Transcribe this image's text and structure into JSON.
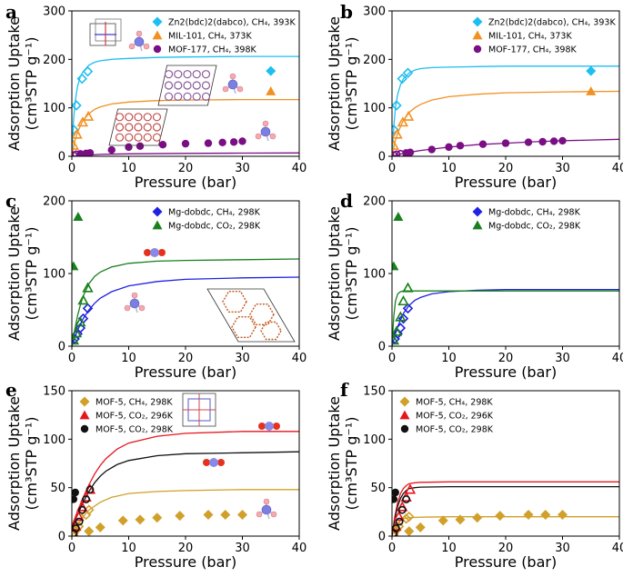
{
  "colors": {
    "cyan": "#1fbef0",
    "orange": "#f29122",
    "purple": "#7a0e84",
    "blue": "#1f22e0",
    "green": "#18801c",
    "gold": "#d0a02a",
    "red": "#e6161e",
    "black": "#111111"
  },
  "chart_data": [
    {
      "id": "a",
      "type": "scatter",
      "panel_label": "a",
      "xlabel": "Pressure (bar)",
      "ylabel_line1": "Adsorption Uptake",
      "ylabel_line2": "(cm³STP g⁻¹)",
      "xlim": [
        0,
        40
      ],
      "ylim": [
        0,
        300
      ],
      "xticks": [
        "0",
        "10",
        "20",
        "30",
        "40"
      ],
      "yticks": [
        "0",
        "100",
        "200",
        "300"
      ],
      "legend_position": "top-right",
      "series": [
        {
          "name": "Zn2(bdc)2(dabco), CH₄, 393K",
          "color": "#1fbef0",
          "marker": "diamond",
          "hollow_x": [
            0.3,
            0.8,
            1.8,
            2.8
          ],
          "hollow_y": [
            55,
            105,
            160,
            175
          ],
          "filled_x": [
            35
          ],
          "filled_y": [
            176
          ],
          "curve_x": [
            0,
            0.3,
            0.6,
            1,
            1.5,
            2,
            3,
            4,
            5,
            7,
            10,
            15,
            20,
            30,
            40
          ],
          "curve_y": [
            0,
            75,
            115,
            145,
            165,
            175,
            188,
            194,
            197,
            200,
            202,
            204,
            205,
            206,
            206
          ]
        },
        {
          "name": "MIL-101, CH₄, 373K",
          "color": "#f29122",
          "marker": "triangle",
          "hollow_x": [
            0.3,
            0.9,
            1.9,
            2.9
          ],
          "hollow_y": [
            22,
            45,
            70,
            82
          ],
          "filled_x": [
            35
          ],
          "filled_y": [
            134
          ],
          "curve_x": [
            0,
            0.5,
            1,
            2,
            3,
            4,
            5,
            7,
            10,
            15,
            20,
            30,
            40
          ],
          "curve_y": [
            0,
            30,
            50,
            75,
            88,
            97,
            102,
            108,
            112,
            115,
            116,
            117,
            117
          ]
        },
        {
          "name": "MOF-177, CH₄, 398K",
          "color": "#7a0e84",
          "marker": "circle",
          "hollow_x": [
            0.3,
            0.8
          ],
          "hollow_y": [
            2,
            4
          ],
          "filled_x": [
            1.5,
            2.5,
            3.2,
            7,
            10,
            12,
            16,
            20,
            24,
            26.5,
            28.5,
            30
          ],
          "filled_y": [
            5,
            6,
            7,
            13,
            19,
            21,
            24,
            26,
            27,
            28.5,
            29.5,
            31
          ],
          "curve_x": [
            0,
            5,
            10,
            20,
            30,
            40
          ],
          "curve_y": [
            0,
            4,
            5,
            6,
            6.5,
            7
          ]
        }
      ],
      "annotations": [
        "CH₄ molecule icons",
        "MOF framework structure images"
      ]
    },
    {
      "id": "b",
      "type": "scatter",
      "panel_label": "b",
      "xlabel": "Pressure (bar)",
      "ylabel_line1": "Adsorption Uptake",
      "ylabel_line2": "(cm³STP g⁻¹)",
      "xlim": [
        0,
        40
      ],
      "ylim": [
        0,
        300
      ],
      "xticks": [
        "0",
        "10",
        "20",
        "30",
        "40"
      ],
      "yticks": [
        "0",
        "100",
        "200",
        "300"
      ],
      "legend_position": "top-right",
      "series": [
        {
          "name": "Zn2(bdc)2(dabco), CH₄, 393K",
          "color": "#1fbef0",
          "marker": "diamond",
          "hollow_x": [
            0.3,
            0.8,
            1.8,
            2.8
          ],
          "hollow_y": [
            55,
            105,
            160,
            172
          ],
          "filled_x": [
            35
          ],
          "filled_y": [
            176
          ],
          "curve_x": [
            0,
            0.3,
            0.6,
            1,
            1.5,
            2,
            3,
            4,
            5,
            7,
            10,
            15,
            20,
            30,
            40
          ],
          "curve_y": [
            0,
            60,
            100,
            128,
            148,
            160,
            172,
            178,
            181,
            183,
            184,
            185,
            186,
            186,
            186
          ]
        },
        {
          "name": "MIL-101, CH₄, 373K",
          "color": "#f29122",
          "marker": "triangle",
          "hollow_x": [
            0.3,
            0.9,
            1.9,
            2.9
          ],
          "hollow_y": [
            22,
            45,
            70,
            82
          ],
          "filled_x": [
            35
          ],
          "filled_y": [
            134
          ],
          "curve_x": [
            0,
            0.5,
            1,
            2,
            3,
            4,
            5,
            7,
            10,
            15,
            20,
            30,
            40
          ],
          "curve_y": [
            0,
            28,
            48,
            74,
            90,
            100,
            107,
            116,
            123,
            128,
            131,
            133,
            134
          ]
        },
        {
          "name": "MOF-177, CH₄, 398K",
          "color": "#7a0e84",
          "marker": "circle",
          "hollow_x": [
            0.3,
            0.8,
            1.5
          ],
          "hollow_y": [
            2,
            4,
            5
          ],
          "filled_x": [
            2.5,
            3.2,
            7,
            10,
            12,
            16,
            20,
            24,
            26.5,
            28.5,
            30
          ],
          "filled_y": [
            7,
            8,
            14,
            19,
            22,
            25,
            27,
            29,
            30,
            31,
            32
          ],
          "curve_x": [
            0,
            2,
            5,
            10,
            15,
            20,
            25,
            30,
            35,
            40
          ],
          "curve_y": [
            0,
            6,
            12,
            19,
            24,
            27,
            30,
            32,
            33.5,
            35
          ]
        }
      ]
    },
    {
      "id": "c",
      "type": "scatter",
      "panel_label": "c",
      "xlabel": "Pressure (bar)",
      "ylabel_line1": "Adsorption Uptake",
      "ylabel_line2": "(cm³STP g⁻¹)",
      "xlim": [
        0,
        40
      ],
      "ylim": [
        0,
        200
      ],
      "xticks": [
        "0",
        "10",
        "20",
        "30",
        "40"
      ],
      "yticks": [
        "0",
        "100",
        "200"
      ],
      "legend_position": "top-right",
      "series": [
        {
          "name": "Mg-dobdc, CH₄, 298K",
          "color": "#1f22e0",
          "marker": "diamond",
          "hollow_x": [
            0.5,
            1.0,
            1.5,
            2.0,
            2.8
          ],
          "hollow_y": [
            10,
            17,
            25,
            38,
            52
          ],
          "filled_x": [],
          "filled_y": [],
          "curve_x": [
            0,
            1,
            2,
            3,
            4,
            5,
            7,
            10,
            15,
            20,
            30,
            40
          ],
          "curve_y": [
            0,
            22,
            38,
            50,
            59,
            66,
            75,
            83,
            89,
            92,
            94,
            95
          ]
        },
        {
          "name": "Mg-dobdc, CO₂, 298K",
          "color": "#18801c",
          "marker": "triangle",
          "hollow_x": [
            0.3,
            0.8,
            1.5,
            2.0,
            2.8
          ],
          "hollow_y": [
            8,
            18,
            33,
            63,
            80
          ],
          "filled_x": [
            0.3,
            1.1
          ],
          "filled_y": [
            110,
            178
          ],
          "curve_x": [
            0,
            0.5,
            1,
            1.5,
            2,
            3,
            4,
            5,
            7,
            10,
            15,
            20,
            30,
            40
          ],
          "curve_y": [
            0,
            22,
            42,
            57,
            69,
            86,
            96,
            102,
            109,
            114,
            117,
            118,
            119,
            120
          ]
        }
      ],
      "annotations": [
        "CO₂ molecule icon",
        "CH₄ molecule icon",
        "Mg-dobdc hexagonal framework image"
      ]
    },
    {
      "id": "d",
      "type": "scatter",
      "panel_label": "d",
      "xlabel": "Pressure (bar)",
      "ylabel_line1": "Adsorption Uptake",
      "ylabel_line2": "(cm³STP g⁻¹)",
      "xlim": [
        0,
        40
      ],
      "ylim": [
        0,
        200
      ],
      "xticks": [
        "0",
        "10",
        "20",
        "30",
        "40"
      ],
      "yticks": [
        "0",
        "100",
        "200"
      ],
      "legend_position": "top-right",
      "series": [
        {
          "name": "Mg-dobdc, CH₄, 298K",
          "color": "#1f22e0",
          "marker": "diamond",
          "hollow_x": [
            0.5,
            1.0,
            1.5,
            2.0,
            2.8
          ],
          "hollow_y": [
            10,
            17,
            25,
            38,
            52
          ],
          "filled_x": [],
          "filled_y": [],
          "curve_x": [
            0,
            0.5,
            1,
            2,
            3,
            4,
            5,
            7,
            10,
            15,
            20,
            30,
            40
          ],
          "curve_y": [
            0,
            14,
            27,
            45,
            56,
            63,
            67,
            72,
            75,
            77,
            78,
            78,
            78
          ]
        },
        {
          "name": "Mg-dobdc, CO₂, 298K",
          "color": "#18801c",
          "marker": "triangle",
          "hollow_x": [
            0.3,
            0.8,
            1.5,
            2.0,
            2.8
          ],
          "hollow_y": [
            8,
            20,
            40,
            62,
            80
          ],
          "filled_x": [
            0.3,
            1.1
          ],
          "filled_y": [
            110,
            178
          ],
          "curve_x": [
            0,
            0.3,
            0.6,
            1,
            1.5,
            2,
            3,
            5,
            10,
            20,
            30,
            40
          ],
          "curve_y": [
            0,
            40,
            62,
            72,
            75,
            76,
            76,
            76,
            76,
            76,
            76,
            76
          ]
        }
      ]
    },
    {
      "id": "e",
      "type": "scatter",
      "panel_label": "e",
      "xlabel": "Pressure (bar)",
      "ylabel_line1": "Adsorption Uptake",
      "ylabel_line2": "(cm³STP g⁻¹)",
      "xlim": [
        0,
        40
      ],
      "ylim": [
        0,
        150
      ],
      "xticks": [
        "0",
        "10",
        "20",
        "30",
        "40"
      ],
      "yticks": [
        "0",
        "50",
        "100",
        "150"
      ],
      "legend_position": "top-left",
      "series": [
        {
          "name": "MOF-5, CH₄, 298K",
          "color": "#d0a02a",
          "marker": "diamond",
          "hollow_x": [
            0.3,
            0.7,
            1.2,
            2.5,
            3.0
          ],
          "hollow_y": [
            3,
            6,
            10,
            22,
            27
          ],
          "filled_x": [
            3.0,
            5,
            9,
            12,
            15,
            19,
            24,
            27,
            30
          ],
          "filled_y": [
            5,
            9,
            16,
            17,
            19,
            21,
            22,
            22,
            22
          ],
          "curve_x": [
            0,
            1,
            2,
            3,
            5,
            7,
            10,
            15,
            20,
            30,
            40
          ],
          "curve_y": [
            0,
            11,
            20,
            27,
            35,
            40,
            44,
            46,
            47,
            48,
            48
          ]
        },
        {
          "name": "MOF-5, CO₂, 296K",
          "color": "#e6161e",
          "marker": "triangle",
          "hollow_x": [
            0.3,
            0.7,
            1.2,
            1.8,
            2.5,
            3.2
          ],
          "hollow_y": [
            3,
            10,
            20,
            30,
            40,
            48
          ],
          "filled_x": [],
          "filled_y": [],
          "curve_x": [
            0,
            1,
            2,
            3,
            4,
            5,
            6,
            8,
            10,
            15,
            20,
            30,
            40
          ],
          "curve_y": [
            10,
            26,
            40,
            53,
            64,
            73,
            80,
            90,
            96,
            103,
            106,
            108,
            108
          ]
        },
        {
          "name": "MOF-5, CO₂, 298K",
          "color": "#111111",
          "marker": "circle",
          "hollow_x": [
            0.3,
            0.7,
            1.3,
            1.8,
            2.5,
            3.2
          ],
          "hollow_y": [
            3,
            8,
            15,
            27,
            38,
            48
          ],
          "filled_x": [
            0.3,
            0.6
          ],
          "filled_y": [
            38,
            45
          ],
          "curve_x": [
            0,
            1,
            2,
            3,
            4,
            5,
            6,
            8,
            10,
            15,
            20,
            30,
            40
          ],
          "curve_y": [
            8,
            22,
            35,
            46,
            55,
            62,
            67,
            74,
            78,
            83,
            85,
            86,
            87
          ]
        }
      ],
      "annotations": [
        "MOF-5 cubic framework image",
        "CO₂ molecule icons",
        "CH₄ molecule icon"
      ]
    },
    {
      "id": "f",
      "type": "scatter",
      "panel_label": "f",
      "xlabel": "Pressure (bar)",
      "ylabel_line1": "Adsorption Uptake",
      "ylabel_line2": "(cm³STP g⁻¹)",
      "xlim": [
        0,
        40
      ],
      "ylim": [
        0,
        150
      ],
      "xticks": [
        "0",
        "10",
        "20",
        "30",
        "40"
      ],
      "yticks": [
        "0",
        "50",
        "100",
        "150"
      ],
      "legend_position": "top-left",
      "series": [
        {
          "name": "MOF-5, CH₄, 298K",
          "color": "#d0a02a",
          "marker": "diamond",
          "hollow_x": [
            0.3,
            0.7,
            1.2,
            2.5,
            3.0
          ],
          "hollow_y": [
            3,
            6,
            10,
            18,
            20
          ],
          "filled_x": [
            3.0,
            5,
            9,
            12,
            15,
            19,
            24,
            27,
            30
          ],
          "filled_y": [
            5,
            9,
            16,
            17,
            19,
            21,
            22,
            22,
            22
          ],
          "curve_x": [
            0,
            0.5,
            1,
            1.5,
            2,
            3,
            5,
            10,
            20,
            40
          ],
          "curve_y": [
            0,
            8,
            13,
            16,
            18,
            19,
            19.5,
            20,
            20,
            20
          ]
        },
        {
          "name": "MOF-5, CO₂, 296K",
          "color": "#e6161e",
          "marker": "triangle",
          "hollow_x": [
            0.3,
            0.7,
            1.2,
            1.8,
            2.5,
            3.2
          ],
          "hollow_y": [
            3,
            10,
            20,
            30,
            40,
            48
          ],
          "filled_x": [],
          "filled_y": [],
          "curve_x": [
            0,
            0.5,
            1,
            1.5,
            2,
            2.5,
            3,
            4,
            5,
            10,
            20,
            40
          ],
          "curve_y": [
            0,
            20,
            35,
            44,
            49,
            52,
            54,
            55,
            55.5,
            56,
            56,
            56
          ]
        },
        {
          "name": "MOF-5, CO₂, 298K",
          "color": "#111111",
          "marker": "circle",
          "hollow_x": [
            0.3,
            0.7,
            1.3,
            1.8,
            2.5
          ],
          "hollow_y": [
            3,
            8,
            15,
            27,
            38
          ],
          "filled_x": [
            0.3,
            0.6
          ],
          "filled_y": [
            38,
            45
          ],
          "curve_x": [
            0,
            0.5,
            1,
            1.5,
            2,
            2.5,
            3,
            4,
            5,
            10,
            20,
            40
          ],
          "curve_y": [
            0,
            18,
            31,
            39,
            44,
            47,
            49,
            50,
            50.5,
            51,
            51,
            51
          ]
        }
      ]
    }
  ]
}
